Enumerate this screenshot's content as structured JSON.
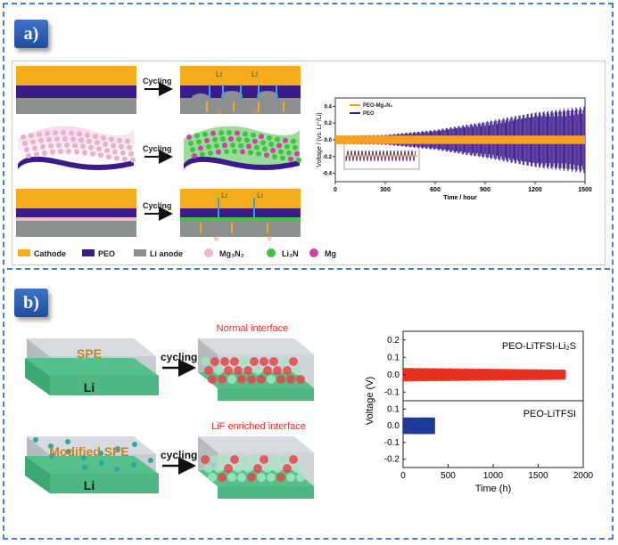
{
  "panel_a": {
    "badge": "a)",
    "cycling_label": "Cycling",
    "ion_li": "Li",
    "ion_e": "e",
    "legend": [
      {
        "label": "Cathode",
        "color": "#f5ad1c"
      },
      {
        "label": "PEO",
        "color": "#3b1a8c"
      },
      {
        "label": "Li anode",
        "color": "#8c9090"
      },
      {
        "label": "Mg₃N₂",
        "color": "#f0b8c8"
      },
      {
        "label": "Li₃N",
        "color": "#3cc640"
      },
      {
        "label": "Mg",
        "color": "#d040a8"
      }
    ],
    "chart": {
      "ylabel": "Voltage / (vs. Li⁺/Li)",
      "xlabel": "Time / hour",
      "xticks": [
        "0",
        "300",
        "600",
        "900",
        "1200",
        "1500"
      ],
      "yticks": [
        "0.4",
        "0.2",
        "0.0",
        "-0.2",
        "-0.4"
      ],
      "legend": [
        "PEO-Mg₃N₂",
        "PEO"
      ]
    }
  },
  "panel_b": {
    "badge": "b)",
    "spe_label": "SPE",
    "li_label": "Li",
    "li_label_2": "Li",
    "modified_label": "Modified SPE",
    "cycling_label": "cycling",
    "cycling_label_2": "cycling",
    "normal_interface": "Normal interface",
    "lif_interface": "LiF enriched interface",
    "chart": {
      "ylabel": "Voltage (V)",
      "xlabel": "Time (h)",
      "xticks": [
        "0",
        "500",
        "1000",
        "1500",
        "2000"
      ],
      "yticks_top": [
        "0.2",
        "0.1",
        "0.0",
        "-0.1"
      ],
      "yticks_bottom": [
        "0.1",
        "0.0",
        "-0.1",
        "-0.2"
      ],
      "series_top": "PEO-LiTFSI-Li₂S",
      "series_bottom": "PEO-LiTFSI"
    }
  },
  "chart_data": [
    {
      "type": "line",
      "xlabel": "Time / hour",
      "ylabel": "Voltage / (vs. Li⁺/Li)",
      "xlim": [
        0,
        1500
      ],
      "ylim": [
        -0.5,
        0.5
      ],
      "series": [
        {
          "name": "PEO-Mg₃N₂",
          "color": "#f5a020",
          "x": [
            0,
            1500
          ],
          "amplitude_v": [
            0.05,
            0.05
          ]
        },
        {
          "name": "PEO",
          "color": "#3b1a8c",
          "x": [
            0,
            300,
            600,
            900,
            1200,
            1500
          ],
          "amplitude_v": [
            0.05,
            0.06,
            0.12,
            0.22,
            0.33,
            0.4
          ]
        }
      ]
    },
    {
      "type": "line",
      "xlabel": "Time (h)",
      "ylabel": "Voltage (V)",
      "xlim": [
        0,
        2000
      ],
      "series": [
        {
          "name": "PEO-LiTFSI-Li₂S",
          "color": "#e83020",
          "x": [
            0,
            1800
          ],
          "amplitude_v": [
            0.04,
            0.03
          ]
        },
        {
          "name": "PEO-LiTFSI",
          "color": "#1f3a9a",
          "x": [
            0,
            350
          ],
          "amplitude_v": [
            0.05,
            0.05
          ]
        }
      ]
    }
  ]
}
